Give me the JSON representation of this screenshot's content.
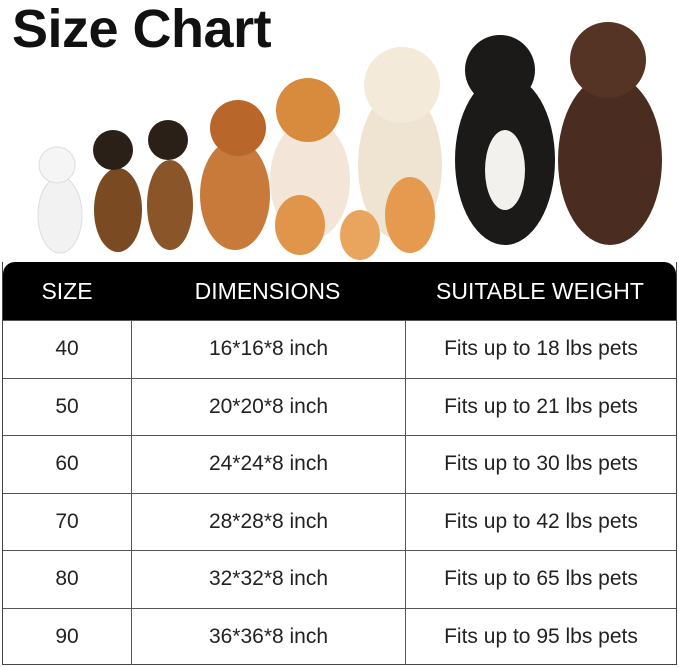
{
  "title": "Size Chart",
  "table": {
    "headers": [
      "SIZE",
      "DIMENSIONS",
      "SUITABLE WEIGHT"
    ],
    "rows": [
      [
        "40",
        "16*16*8 inch",
        "Fits up to 18 lbs pets"
      ],
      [
        "50",
        "20*20*8 inch",
        "Fits up to 21 lbs pets"
      ],
      [
        "60",
        "24*24*8 inch",
        "Fits up to 30 lbs pets"
      ],
      [
        "70",
        "28*28*8 inch",
        "Fits up to 42 lbs pets"
      ],
      [
        "80",
        "32*32*8 inch",
        "Fits up to 65 lbs pets"
      ],
      [
        "90",
        "36*36*8 inch",
        "Fits up to 95 lbs pets"
      ]
    ]
  },
  "colors": {
    "header_bg": "#000000",
    "header_text": "#ffffff",
    "grid": "#555555"
  }
}
